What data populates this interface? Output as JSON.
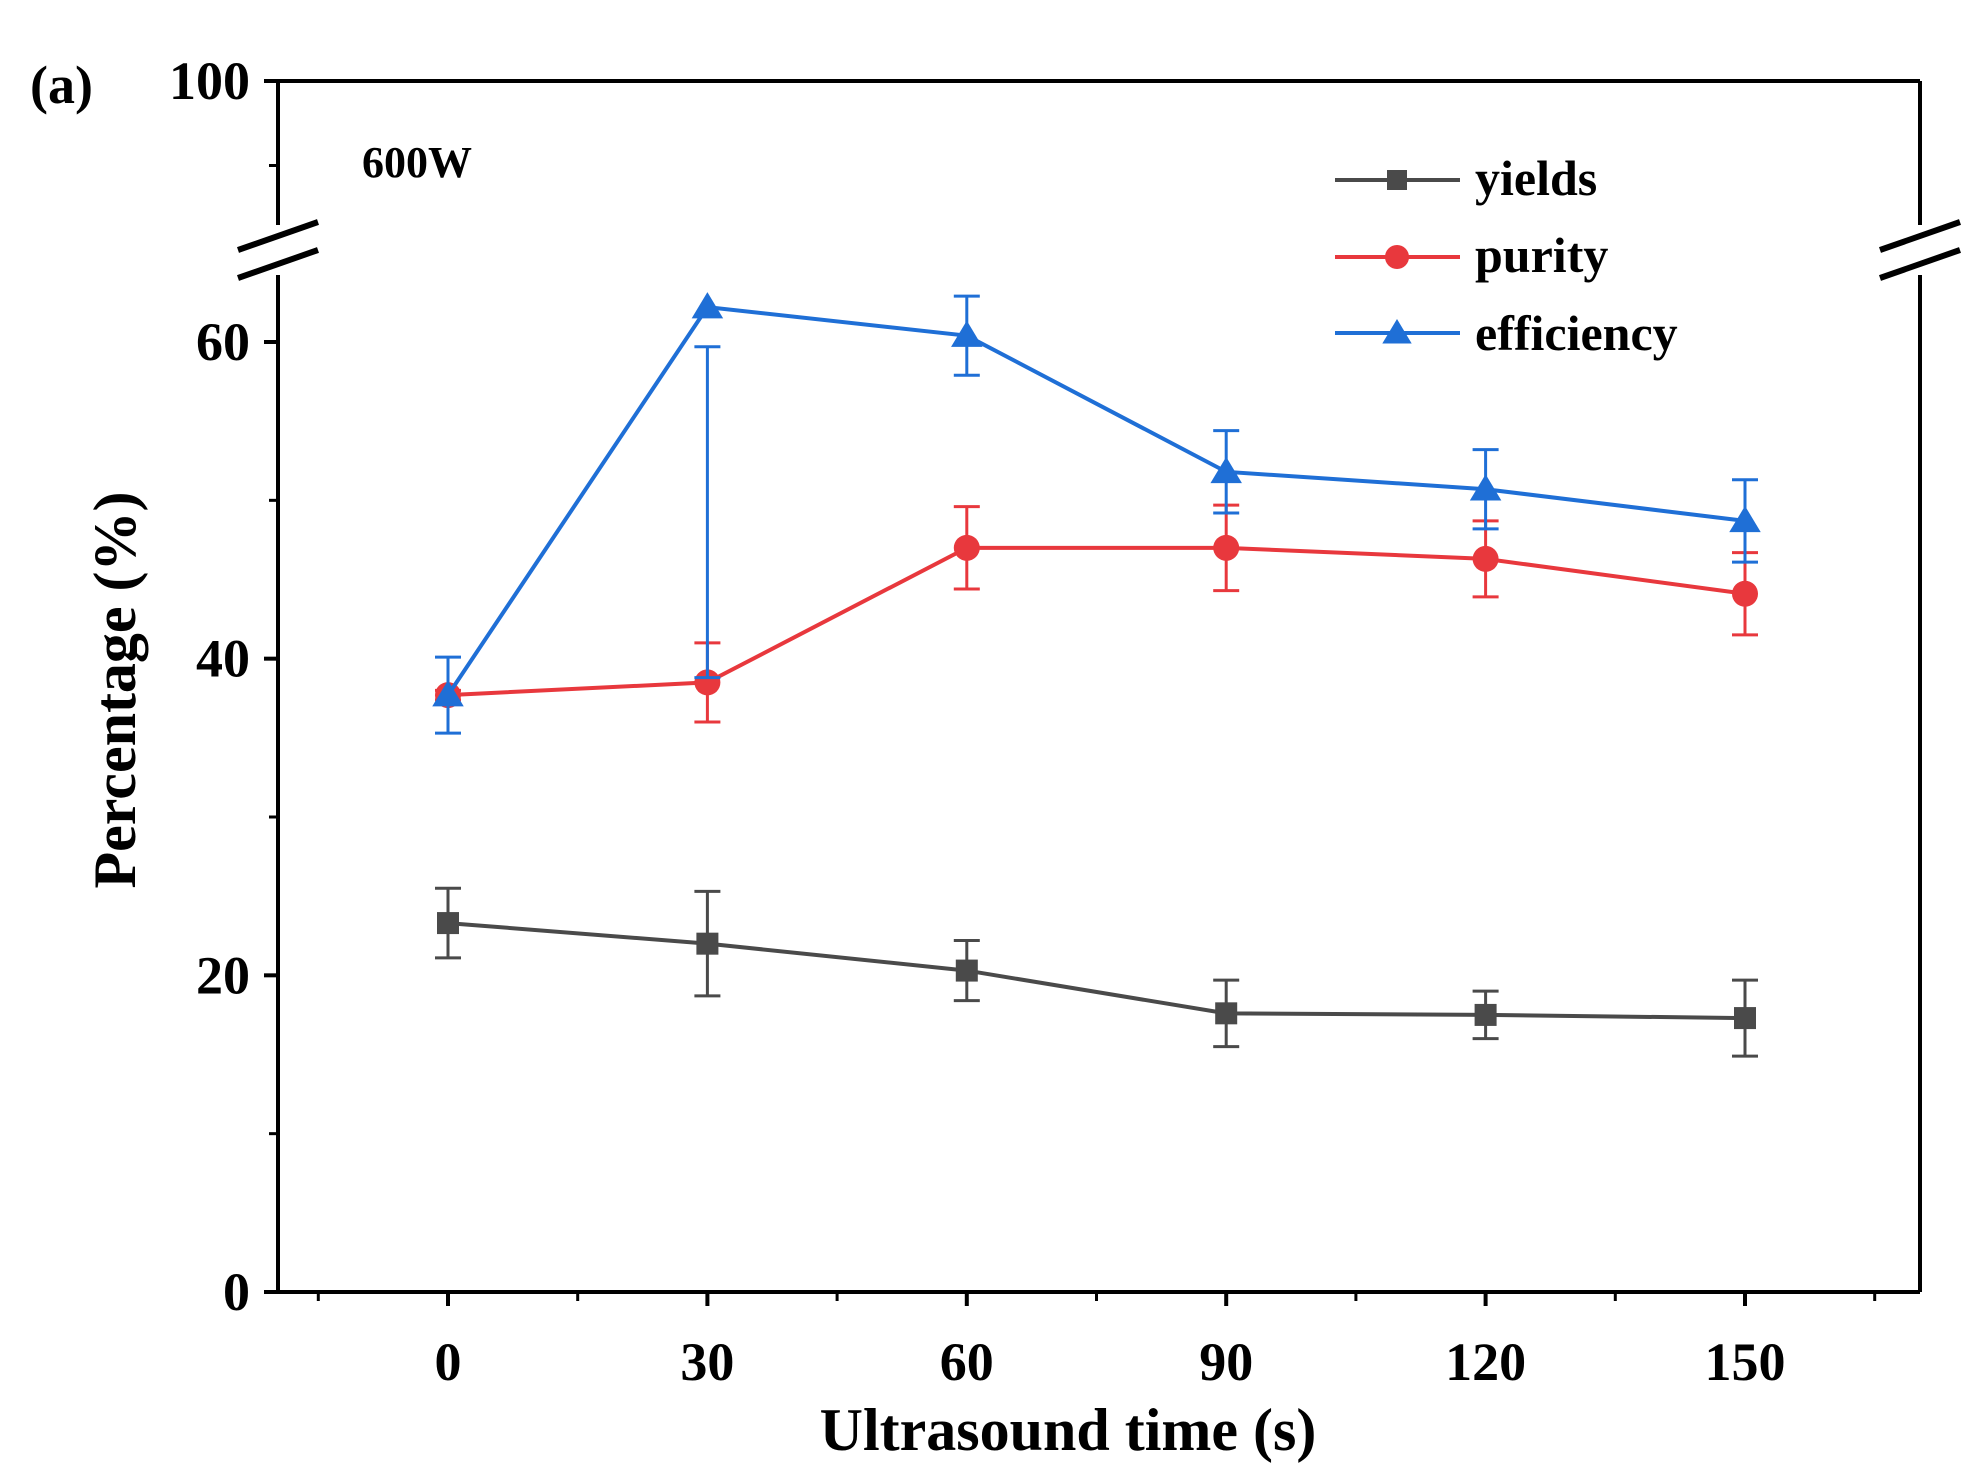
{
  "chart_data": {
    "type": "line",
    "panel_label": "(a)",
    "annotation": "600W",
    "xlabel": "Ultrasound time (s)",
    "ylabel": "Percentage (%)",
    "x": [
      0,
      30,
      60,
      90,
      120,
      150
    ],
    "x_tick_labels": [
      "0",
      "30",
      "60",
      "90",
      "120",
      "150"
    ],
    "xlim": [
      -20,
      167
    ],
    "ylim": [
      0,
      100
    ],
    "y_axis_break": [
      64,
      90
    ],
    "y_tick_labels": [
      {
        "value": 0,
        "label": "0"
      },
      {
        "value": 20,
        "label": "20"
      },
      {
        "value": 40,
        "label": "40"
      },
      {
        "value": 60,
        "label": "60"
      },
      {
        "value": 100,
        "label": "100"
      }
    ],
    "legend_position": "top-right",
    "series": [
      {
        "name": "yields",
        "color": "#4a4a4a",
        "marker": "square",
        "values": [
          23.3,
          22.0,
          20.3,
          17.6,
          17.5,
          17.3
        ],
        "errors": [
          2.2,
          3.3,
          1.9,
          2.1,
          1.5,
          2.4
        ]
      },
      {
        "name": "purity",
        "color": "#e8383d",
        "marker": "circle",
        "values": [
          37.7,
          38.5,
          47.0,
          47.0,
          46.3,
          44.1
        ],
        "errors": [
          0.3,
          2.5,
          2.6,
          2.7,
          2.4,
          2.6
        ]
      },
      {
        "name": "efficiency",
        "color": "#1f6fd6",
        "marker": "triangle",
        "values": [
          37.7,
          62.2,
          60.4,
          51.8,
          50.7,
          48.7
        ],
        "errors": [
          2.4,
          2.5,
          2.5,
          2.6,
          2.5,
          2.6
        ]
      }
    ]
  }
}
